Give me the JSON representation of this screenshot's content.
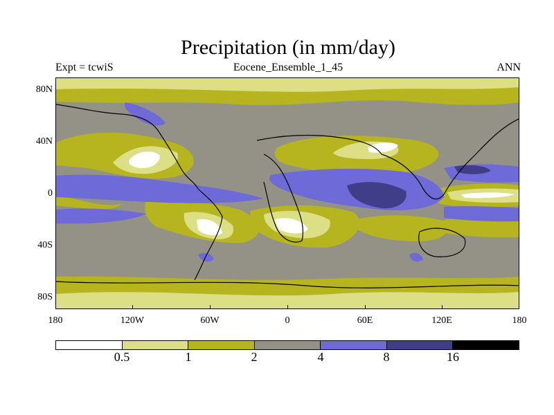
{
  "title": "Precipitation (in mm/day)",
  "left_label": "Expt = tcwiS",
  "center_label": "Eocene_Ensemble_1_45",
  "right_label": "ANN",
  "lat_labels": [
    "80N",
    "40N",
    "0",
    "40S",
    "80S"
  ],
  "lon_labels": [
    "180",
    "120W",
    "60W",
    "0",
    "60E",
    "120E",
    "180"
  ],
  "colorbar": {
    "labels": [
      "0.5",
      "1",
      "2",
      "4",
      "8",
      "16"
    ],
    "colors": [
      "#ffffff",
      "#dddf86",
      "#b6b520",
      "#949286",
      "#6e6ad8",
      "#403e88",
      "#000000"
    ]
  }
}
